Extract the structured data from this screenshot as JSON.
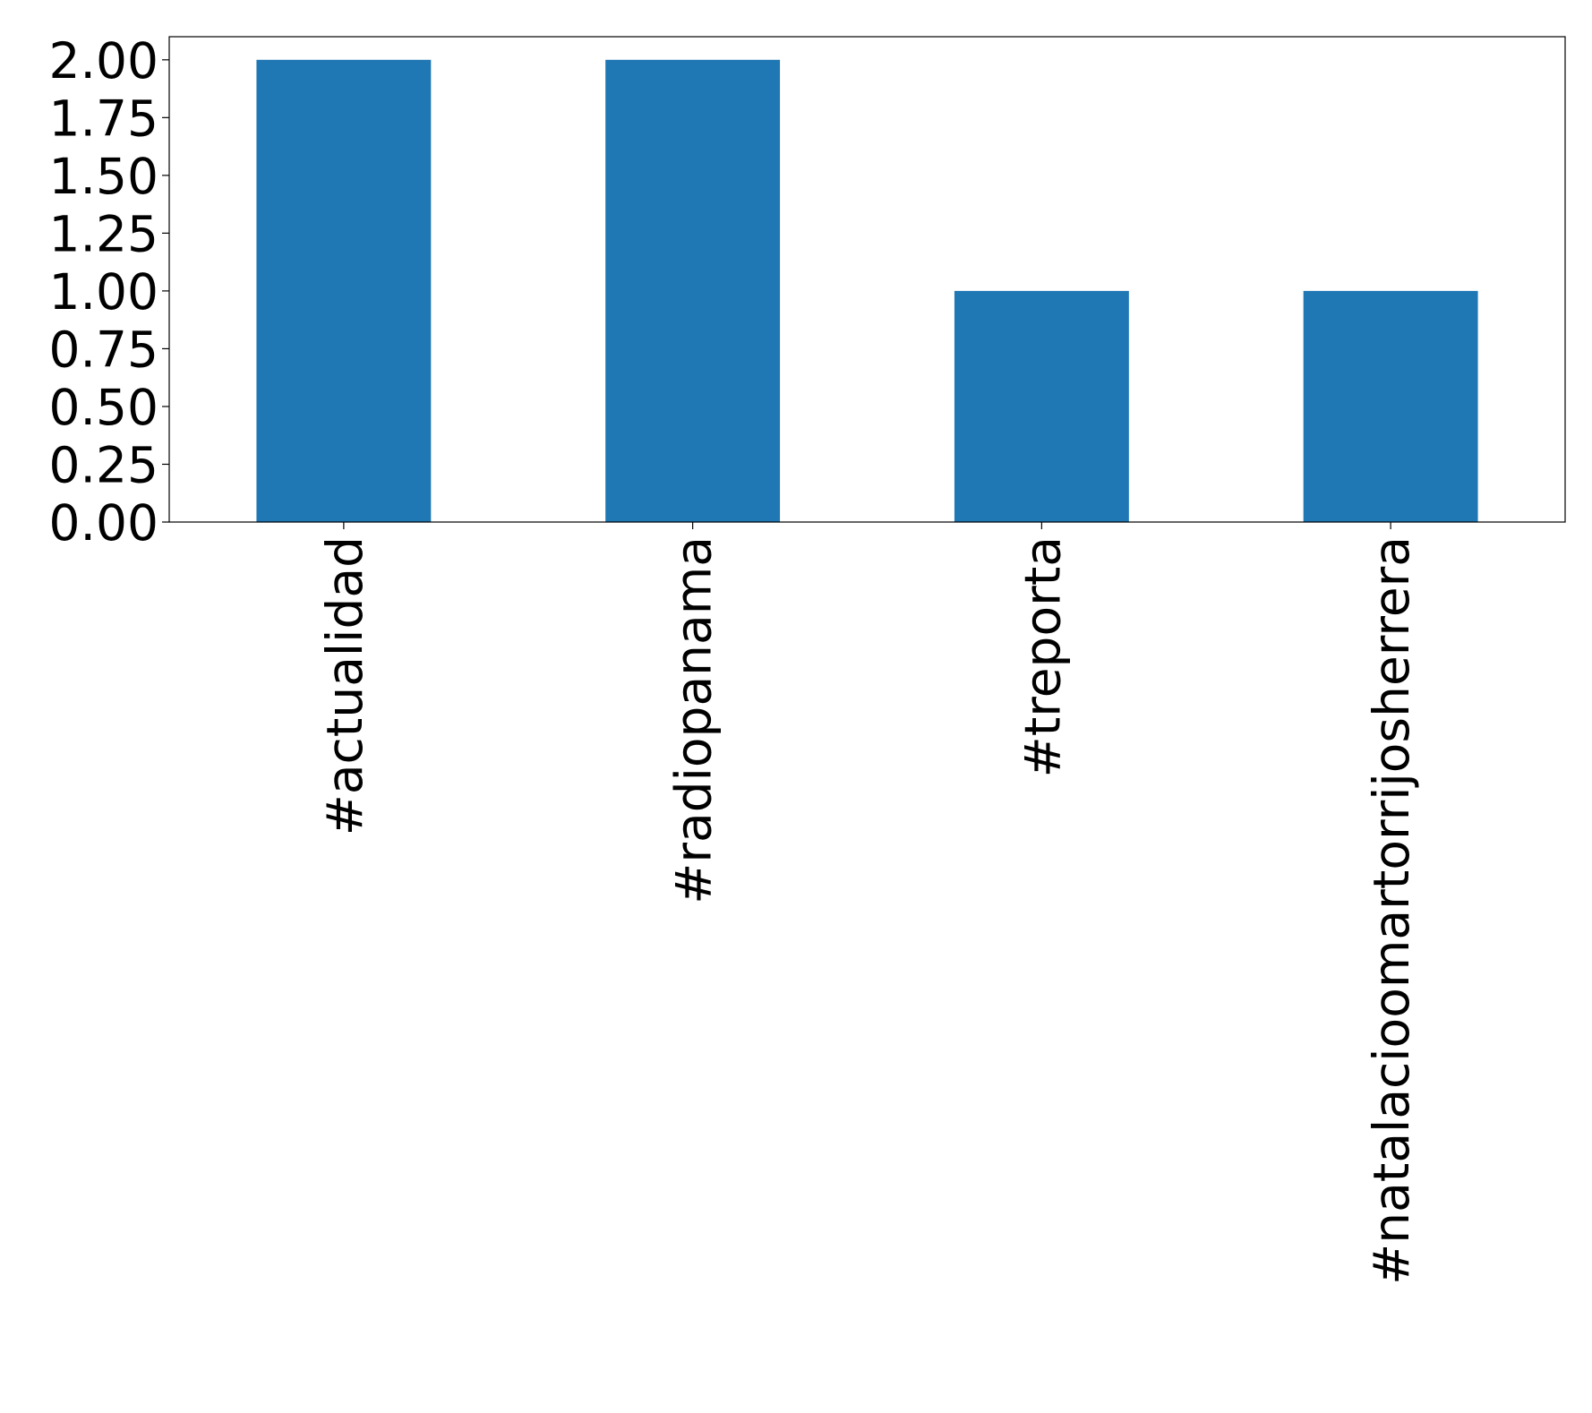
{
  "chart_data": {
    "type": "bar",
    "categories": [
      "#actualidad",
      "#radiopanama",
      "#treporta",
      "#natalacioomartorrijosherrera"
    ],
    "values": [
      2,
      2,
      1,
      1
    ],
    "color": "#1f77b4",
    "ylim": [
      0,
      2.1
    ],
    "yticks": [
      {
        "value": 0,
        "label": "0.00"
      },
      {
        "value": 0.25,
        "label": "0.25"
      },
      {
        "value": 0.5,
        "label": "0.50"
      },
      {
        "value": 0.75,
        "label": "0.75"
      },
      {
        "value": 1,
        "label": "1.00"
      },
      {
        "value": 1.25,
        "label": "1.25"
      },
      {
        "value": 1.5,
        "label": "1.50"
      },
      {
        "value": 1.75,
        "label": "1.75"
      },
      {
        "value": 2,
        "label": "2.00"
      }
    ],
    "grid": false
  }
}
